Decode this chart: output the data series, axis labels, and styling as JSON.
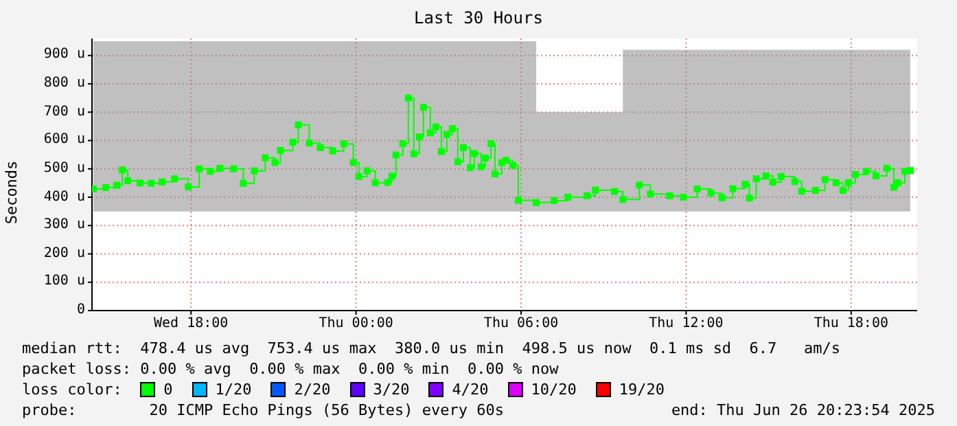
{
  "chart_data": {
    "type": "step",
    "title": "Last 30 Hours",
    "ylabel": "Seconds",
    "x": [
      "2025-06-25T14:27",
      "2025-06-25T14:54",
      "2025-06-25T15:18",
      "2025-06-25T15:30",
      "2025-06-25T15:42",
      "2025-06-25T16:09",
      "2025-06-25T16:33",
      "2025-06-25T16:57",
      "2025-06-25T17:24",
      "2025-06-25T17:54",
      "2025-06-25T18:18",
      "2025-06-25T18:42",
      "2025-06-25T19:03",
      "2025-06-25T19:33",
      "2025-06-25T19:54",
      "2025-06-25T20:18",
      "2025-06-25T20:42",
      "2025-06-25T21:03",
      "2025-06-25T21:15",
      "2025-06-25T21:42",
      "2025-06-25T21:54",
      "2025-06-25T22:18",
      "2025-06-25T22:42",
      "2025-06-25T23:09",
      "2025-06-25T23:33",
      "2025-06-25T23:54",
      "2025-06-26T00:06",
      "2025-06-26T00:24",
      "2025-06-26T00:42",
      "2025-06-26T01:09",
      "2025-06-26T01:18",
      "2025-06-26T01:27",
      "2025-06-26T01:42",
      "2025-06-26T01:54",
      "2025-06-26T02:06",
      "2025-06-26T02:18",
      "2025-06-26T02:27",
      "2025-06-26T02:42",
      "2025-06-26T02:54",
      "2025-06-26T03:06",
      "2025-06-26T03:18",
      "2025-06-26T03:30",
      "2025-06-26T03:42",
      "2025-06-26T03:54",
      "2025-06-26T04:09",
      "2025-06-26T04:18",
      "2025-06-26T04:33",
      "2025-06-26T04:42",
      "2025-06-26T04:54",
      "2025-06-26T05:03",
      "2025-06-26T05:18",
      "2025-06-26T05:27",
      "2025-06-26T05:42",
      "2025-06-26T05:54",
      "2025-06-26T06:33",
      "2025-06-26T07:12",
      "2025-06-26T07:42",
      "2025-06-26T08:24",
      "2025-06-26T08:42",
      "2025-06-26T09:24",
      "2025-06-26T09:42",
      "2025-06-26T10:18",
      "2025-06-26T10:42",
      "2025-06-26T11:24",
      "2025-06-26T11:54",
      "2025-06-26T12:24",
      "2025-06-26T12:54",
      "2025-06-26T13:18",
      "2025-06-26T13:42",
      "2025-06-26T14:09",
      "2025-06-26T14:18",
      "2025-06-26T14:33",
      "2025-06-26T14:54",
      "2025-06-26T15:09",
      "2025-06-26T15:27",
      "2025-06-26T15:57",
      "2025-06-26T16:12",
      "2025-06-26T16:42",
      "2025-06-26T17:03",
      "2025-06-26T17:27",
      "2025-06-26T17:42",
      "2025-06-26T17:54",
      "2025-06-26T18:09",
      "2025-06-26T18:33",
      "2025-06-26T18:54",
      "2025-06-26T19:18",
      "2025-06-26T19:33",
      "2025-06-26T19:42",
      "2025-06-26T19:57",
      "2025-06-26T20:09"
    ],
    "xlim": [
      "2025-06-25T14:24",
      "2025-06-26T20:24"
    ],
    "xticks": [
      {
        "value": "2025-06-25T18:00",
        "label": "Wed 18:00"
      },
      {
        "value": "2025-06-26T00:00",
        "label": "Thu 00:00"
      },
      {
        "value": "2025-06-26T06:00",
        "label": "Thu 06:00"
      },
      {
        "value": "2025-06-26T12:00",
        "label": "Thu 12:00"
      },
      {
        "value": "2025-06-26T18:00",
        "label": "Thu 18:00"
      }
    ],
    "ylim": [
      0,
      960
    ],
    "yticks": [
      0,
      {
        "value": 100,
        "label": "100 u"
      },
      {
        "value": 200,
        "label": "200 u"
      },
      {
        "value": 300,
        "label": "300 u"
      },
      {
        "value": 400,
        "label": "400 u"
      },
      {
        "value": 500,
        "label": "500 u"
      },
      {
        "value": 600,
        "label": "600 u"
      },
      {
        "value": 700,
        "label": "700 u"
      },
      {
        "value": 800,
        "label": "800 u"
      },
      {
        "value": 900,
        "label": "900 u"
      }
    ],
    "grid": true,
    "marker": "square",
    "legend": "bottom",
    "legend_title": "loss color:",
    "series": [
      {
        "name": "0",
        "color": "#00ff00",
        "values": [
          429,
          434,
          442,
          496,
          458,
          450,
          449,
          454,
          465,
          436,
          500,
          491,
          502,
          500,
          449,
          493,
          539,
          522,
          565,
          594,
          655,
          591,
          575,
          563,
          588,
          522,
          473,
          493,
          451,
          452,
          474,
          549,
          589,
          750,
          553,
          613,
          717,
          627,
          648,
          561,
          621,
          642,
          525,
          575,
          504,
          554,
          507,
          538,
          589,
          482,
          522,
          530,
          512,
          389,
          381,
          388,
          400,
          405,
          425,
          420,
          392,
          443,
          411,
          405,
          400,
          429,
          414,
          398,
          430,
          446,
          397,
          465,
          475,
          453,
          473,
          455,
          421,
          424,
          462,
          451,
          424,
          451,
          480,
          491,
          475,
          502,
          435,
          451,
          491,
          494
        ],
        "lower": [
          350,
          350,
          350,
          350,
          350,
          350,
          350,
          350,
          350,
          350,
          350,
          350,
          350,
          350,
          350,
          350,
          350,
          350,
          350,
          350,
          350,
          350,
          350,
          350,
          350,
          350,
          350,
          350,
          350,
          350,
          350,
          350,
          350,
          350,
          350,
          350,
          350,
          350,
          350,
          350,
          350,
          350,
          350,
          350,
          350,
          350,
          350,
          350,
          350,
          350,
          350,
          350,
          350,
          350,
          350,
          350,
          350,
          350,
          350,
          350,
          350,
          350,
          350,
          350,
          350,
          350,
          350,
          350,
          350,
          350,
          350,
          350,
          350,
          350,
          350,
          350,
          350,
          350,
          350,
          350,
          350,
          350,
          350,
          350,
          350,
          350,
          350,
          350,
          350,
          350
        ],
        "upper": [
          950,
          950,
          950,
          950,
          950,
          950,
          950,
          950,
          950,
          950,
          950,
          950,
          950,
          950,
          950,
          950,
          950,
          950,
          950,
          950,
          950,
          950,
          950,
          950,
          950,
          950,
          950,
          950,
          950,
          950,
          950,
          950,
          950,
          950,
          950,
          950,
          950,
          950,
          950,
          950,
          950,
          950,
          950,
          950,
          950,
          950,
          950,
          950,
          950,
          950,
          950,
          950,
          950,
          950,
          700,
          700,
          700,
          700,
          700,
          700,
          920,
          920,
          920,
          920,
          920,
          920,
          920,
          920,
          920,
          920,
          920,
          920,
          920,
          920,
          920,
          920,
          920,
          920,
          920,
          920,
          920,
          920,
          920,
          920,
          920,
          920,
          920,
          920,
          920,
          920
        ]
      },
      {
        "name": "1/20",
        "color": "#00b8ff",
        "values": [
          null,
          null,
          null,
          null,
          null,
          null,
          null,
          null,
          null,
          null,
          null,
          null,
          null,
          null,
          null,
          null,
          null,
          null,
          null,
          null,
          null,
          null,
          null,
          null,
          null,
          null,
          null,
          null,
          null,
          null,
          null,
          null,
          null,
          null,
          null,
          null,
          null,
          null,
          null,
          null,
          null,
          null,
          null,
          null,
          null,
          null,
          null,
          null,
          null,
          null,
          null,
          null,
          null,
          null,
          null,
          null,
          null,
          null,
          null,
          null,
          null,
          null,
          null,
          null,
          null,
          null,
          null,
          null,
          null,
          null,
          null,
          null,
          null,
          null,
          null,
          null,
          null,
          null,
          null,
          null,
          null,
          null,
          null,
          null,
          null,
          null,
          null,
          null,
          null,
          null
        ]
      },
      {
        "name": "2/20",
        "color": "#0059ff",
        "values": [
          null,
          null,
          null,
          null,
          null,
          null,
          null,
          null,
          null,
          null,
          null,
          null,
          null,
          null,
          null,
          null,
          null,
          null,
          null,
          null,
          null,
          null,
          null,
          null,
          null,
          null,
          null,
          null,
          null,
          null,
          null,
          null,
          null,
          null,
          null,
          null,
          null,
          null,
          null,
          null,
          null,
          null,
          null,
          null,
          null,
          null,
          null,
          null,
          null,
          null,
          null,
          null,
          null,
          null,
          null,
          null,
          null,
          null,
          null,
          null,
          null,
          null,
          null,
          null,
          null,
          null,
          null,
          null,
          null,
          null,
          null,
          null,
          null,
          null,
          null,
          null,
          null,
          null,
          null,
          null,
          null,
          null,
          null,
          null,
          null,
          null,
          null,
          null,
          null,
          null
        ]
      },
      {
        "name": "3/20",
        "color": "#5e00ff",
        "values": [
          null,
          null,
          null,
          null,
          null,
          null,
          null,
          null,
          null,
          null,
          null,
          null,
          null,
          null,
          null,
          null,
          null,
          null,
          null,
          null,
          null,
          null,
          null,
          null,
          null,
          null,
          null,
          null,
          null,
          null,
          null,
          null,
          null,
          null,
          null,
          null,
          null,
          null,
          null,
          null,
          null,
          null,
          null,
          null,
          null,
          null,
          null,
          null,
          null,
          null,
          null,
          null,
          null,
          null,
          null,
          null,
          null,
          null,
          null,
          null,
          null,
          null,
          null,
          null,
          null,
          null,
          null,
          null,
          null,
          null,
          null,
          null,
          null,
          null,
          null,
          null,
          null,
          null,
          null,
          null,
          null,
          null,
          null,
          null,
          null,
          null,
          null,
          null,
          null,
          null
        ]
      },
      {
        "name": "4/20",
        "color": "#7e00ff",
        "values": [
          null,
          null,
          null,
          null,
          null,
          null,
          null,
          null,
          null,
          null,
          null,
          null,
          null,
          null,
          null,
          null,
          null,
          null,
          null,
          null,
          null,
          null,
          null,
          null,
          null,
          null,
          null,
          null,
          null,
          null,
          null,
          null,
          null,
          null,
          null,
          null,
          null,
          null,
          null,
          null,
          null,
          null,
          null,
          null,
          null,
          null,
          null,
          null,
          null,
          null,
          null,
          null,
          null,
          null,
          null,
          null,
          null,
          null,
          null,
          null,
          null,
          null,
          null,
          null,
          null,
          null,
          null,
          null,
          null,
          null,
          null,
          null,
          null,
          null,
          null,
          null,
          null,
          null,
          null,
          null,
          null,
          null,
          null,
          null,
          null,
          null,
          null,
          null,
          null,
          null
        ]
      },
      {
        "name": "10/20",
        "color": "#dd00ff",
        "values": [
          null,
          null,
          null,
          null,
          null,
          null,
          null,
          null,
          null,
          null,
          null,
          null,
          null,
          null,
          null,
          null,
          null,
          null,
          null,
          null,
          null,
          null,
          null,
          null,
          null,
          null,
          null,
          null,
          null,
          null,
          null,
          null,
          null,
          null,
          null,
          null,
          null,
          null,
          null,
          null,
          null,
          null,
          null,
          null,
          null,
          null,
          null,
          null,
          null,
          null,
          null,
          null,
          null,
          null,
          null,
          null,
          null,
          null,
          null,
          null,
          null,
          null,
          null,
          null,
          null,
          null,
          null,
          null,
          null,
          null,
          null,
          null,
          null,
          null,
          null,
          null,
          null,
          null,
          null,
          null,
          null,
          null,
          null,
          null,
          null,
          null,
          null,
          null,
          null,
          null
        ]
      },
      {
        "name": "19/20",
        "color": "#ff0000",
        "values": [
          null,
          null,
          null,
          null,
          null,
          null,
          null,
          null,
          null,
          null,
          null,
          null,
          null,
          null,
          null,
          null,
          null,
          null,
          null,
          null,
          null,
          null,
          null,
          null,
          null,
          null,
          null,
          null,
          null,
          null,
          null,
          null,
          null,
          null,
          null,
          null,
          null,
          null,
          null,
          null,
          null,
          null,
          null,
          null,
          null,
          null,
          null,
          null,
          null,
          null,
          null,
          null,
          null,
          null,
          null,
          null,
          null,
          null,
          null,
          null,
          null,
          null,
          null,
          null,
          null,
          null,
          null,
          null,
          null,
          null,
          null,
          null,
          null,
          null,
          null,
          null,
          null,
          null,
          null,
          null,
          null,
          null,
          null,
          null,
          null,
          null,
          null,
          null,
          null,
          null
        ]
      }
    ],
    "annotations": [
      "median rtt:  478.4 us avg  753.4 us max  380.0 us min  498.5 us now  0.1 ms sd  6.7   am/s",
      "packet loss: 0.00 % avg  0.00 % max  0.00 % min  0.00 % now",
      "probe:        20 ICMP Echo Pings (56 Bytes) every 60s",
      "end: Thu Jun 26 20:23:54 2025"
    ]
  }
}
